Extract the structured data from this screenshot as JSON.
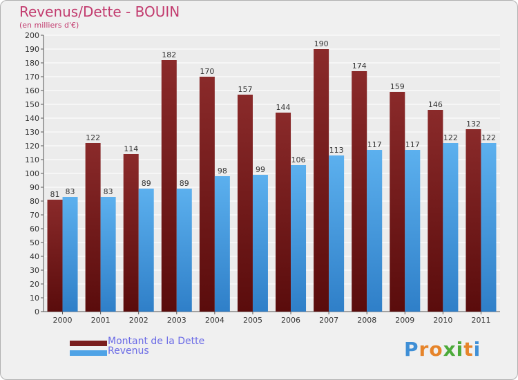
{
  "title": "Revenus/Dette - BOUIN",
  "subtitle": "(en milliers d'€)",
  "colors": {
    "dette": "#7a1e1e",
    "revenus": "#4fa3e6",
    "title": "#c23b6e",
    "legend_text": "#6a6ae6"
  },
  "chart_data": {
    "type": "bar",
    "title": "Revenus/Dette - BOUIN",
    "ylabel": "(en milliers d'€)",
    "xlabel": "",
    "ylim": [
      0,
      200
    ],
    "yticks": [
      0,
      10,
      20,
      30,
      40,
      50,
      60,
      70,
      80,
      90,
      100,
      110,
      120,
      130,
      140,
      150,
      160,
      170,
      180,
      190,
      200
    ],
    "grid": true,
    "categories": [
      "2000",
      "2001",
      "2002",
      "2003",
      "2004",
      "2005",
      "2006",
      "2007",
      "2008",
      "2009",
      "2010",
      "2011"
    ],
    "series": [
      {
        "name": "Montant de la Dette",
        "color": "#7a1e1e",
        "values": [
          81,
          122,
          114,
          182,
          170,
          157,
          144,
          190,
          174,
          159,
          146,
          132
        ]
      },
      {
        "name": "Revenus",
        "color": "#4fa3e6",
        "values": [
          83,
          83,
          89,
          89,
          98,
          99,
          106,
          113,
          117,
          117,
          122,
          122
        ]
      }
    ],
    "legend": [
      "Montant de la Dette",
      "Revenus"
    ]
  },
  "legend": {
    "dette_label": "Montant de la Dette",
    "revenus_label": "Revenus"
  },
  "logo": {
    "text": "Proxiti",
    "letters": [
      "P",
      "r",
      "o",
      "x",
      "i",
      "t",
      "i"
    ],
    "letter_colors": [
      "#3f8fd6",
      "#e6842a",
      "#e6842a",
      "#4caa3a",
      "#4caa3a",
      "#e6842a",
      "#3f8fd6"
    ]
  }
}
